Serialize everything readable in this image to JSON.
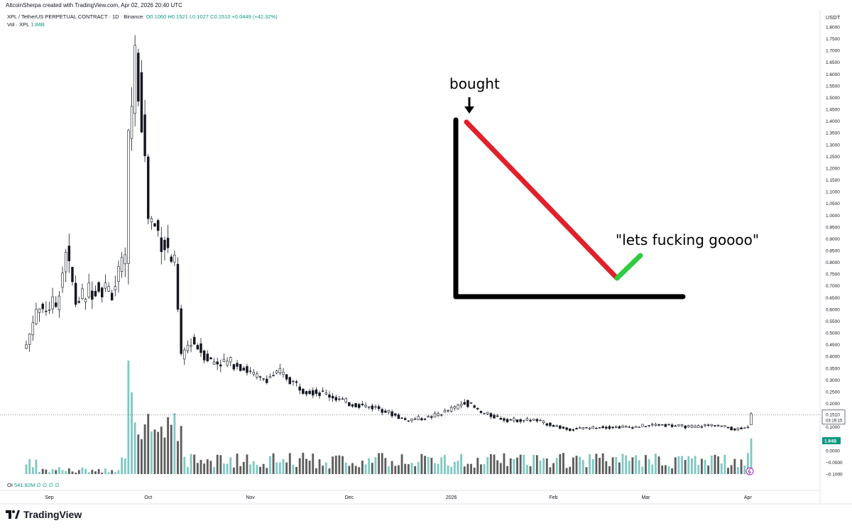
{
  "header": {
    "credit": "AltcoinSherpa created with TradingView.com, Apr 02, 2026 20:40 UTC",
    "symbol": "XPL / TetherUS PERPETUAL CONTRACT · 1D · Binance",
    "open": "O0.1060",
    "high": "H0.1521",
    "low": "L0.1027",
    "close": "C0.1510",
    "change": "+0.0449 (+42.32%)",
    "vol_label": "Vol · XPL",
    "vol_value": "1.84B",
    "oi_label": "OI",
    "oi_value": "541.82M ∅ ∅ ∅ ∅"
  },
  "brand": {
    "name": "TradingView",
    "icon": "tradingview-logo-icon"
  },
  "overlay": {
    "bought_label": "bought",
    "quote_label": "\"lets fucking goooo\"",
    "colors": {
      "axis": "#000000",
      "down": "#e0202a",
      "up": "#2ecc40",
      "arrow": "#000000"
    }
  },
  "colors": {
    "up_candle": "#ffffff",
    "down_candle": "#131722",
    "vol_up": "#7fc9c3",
    "vol_down": "#5d5d5d",
    "accent": "#089981"
  },
  "chart_data": {
    "type": "candlestick",
    "currency": "USDT",
    "y_ticks": [
      "1.8000",
      "1.7500",
      "1.7000",
      "1.6500",
      "1.6000",
      "1.5500",
      "1.5000",
      "1.4500",
      "1.4000",
      "1.3500",
      "1.3000",
      "1.2500",
      "1.2000",
      "1.1500",
      "1.1000",
      "1.0500",
      "1.0000",
      "0.9500",
      "0.9000",
      "0.8500",
      "0.8000",
      "0.7500",
      "0.7000",
      "0.6500",
      "0.6000",
      "0.5500",
      "0.5000",
      "0.4500",
      "0.4000",
      "0.3500",
      "0.3000",
      "0.2500",
      "0.2000",
      "0.1500",
      "0.1000",
      "0.0500",
      "0.0000",
      "-0.0500",
      "-0.1000"
    ],
    "ylim": [
      -0.1,
      1.8
    ],
    "x_labels": [
      "Sep",
      "Oct",
      "Nov",
      "Dec",
      "2026",
      "Feb",
      "Mar",
      "Apr"
    ],
    "last_price": "0.1510",
    "countdown": "03:19:15",
    "volume_last": "1.84B",
    "price_path": [
      [
        "2025-08-25",
        0.45
      ],
      [
        "2025-08-28",
        0.6
      ],
      [
        "2025-09-03",
        0.62
      ],
      [
        "2025-09-06",
        0.85
      ],
      [
        "2025-09-09",
        0.63
      ],
      [
        "2025-09-15",
        0.7
      ],
      [
        "2025-09-20",
        0.68
      ],
      [
        "2025-09-24",
        0.8
      ],
      [
        "2025-09-25",
        1.3
      ],
      [
        "2025-09-27",
        1.67
      ],
      [
        "2025-09-29",
        1.45
      ],
      [
        "2025-10-01",
        1.0
      ],
      [
        "2025-10-06",
        0.88
      ],
      [
        "2025-10-09",
        0.78
      ],
      [
        "2025-10-11",
        0.4
      ],
      [
        "2025-10-14",
        0.47
      ],
      [
        "2025-10-20",
        0.38
      ],
      [
        "2025-10-28",
        0.37
      ],
      [
        "2025-11-04",
        0.3
      ],
      [
        "2025-11-10",
        0.33
      ],
      [
        "2025-11-17",
        0.26
      ],
      [
        "2025-11-24",
        0.24
      ],
      [
        "2025-12-01",
        0.2
      ],
      [
        "2025-12-10",
        0.18
      ],
      [
        "2025-12-18",
        0.13
      ],
      [
        "2025-12-25",
        0.14
      ],
      [
        "2026-01-02",
        0.18
      ],
      [
        "2026-01-05",
        0.21
      ],
      [
        "2026-01-10",
        0.16
      ],
      [
        "2026-01-18",
        0.13
      ],
      [
        "2026-01-26",
        0.13
      ],
      [
        "2026-02-05",
        0.09
      ],
      [
        "2026-02-15",
        0.1
      ],
      [
        "2026-02-24",
        0.1
      ],
      [
        "2026-03-05",
        0.11
      ],
      [
        "2026-03-15",
        0.1
      ],
      [
        "2026-03-22",
        0.11
      ],
      [
        "2026-03-28",
        0.09
      ],
      [
        "2026-04-01",
        0.105
      ],
      [
        "2026-04-02",
        0.151
      ]
    ]
  }
}
